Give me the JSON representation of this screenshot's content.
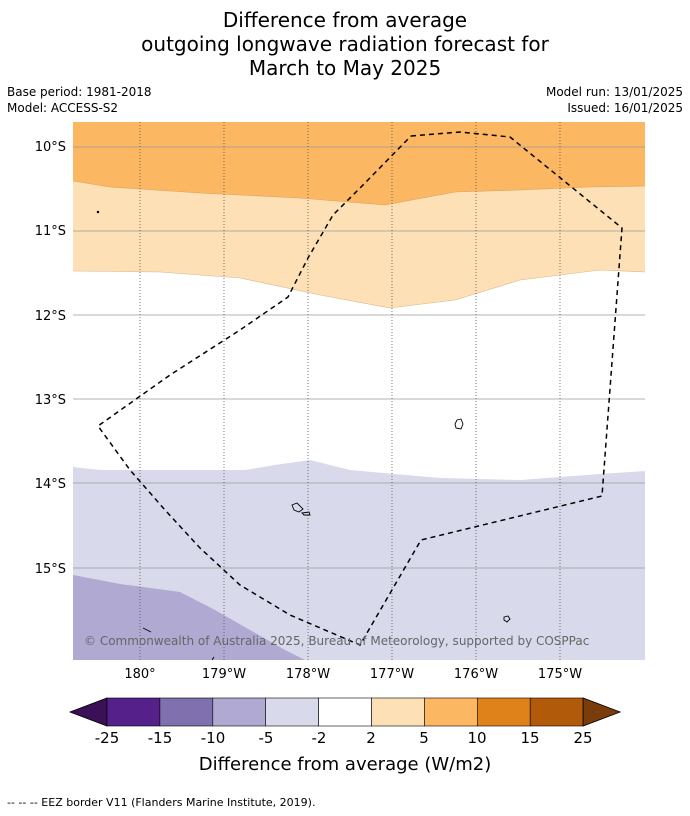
{
  "title": {
    "line1": "Difference from average",
    "line2": "outgoing longwave radiation forecast for",
    "line3": "March to May 2025"
  },
  "meta": {
    "base_period": "Base period: 1981-2018",
    "model": "Model: ACCESS-S2",
    "model_run": "Model run: 13/01/2025",
    "issued": "Issued: 16/01/2025"
  },
  "map": {
    "lat_labels": [
      "10°S",
      "11°S",
      "12°S",
      "13°S",
      "14°S",
      "15°S"
    ],
    "lon_labels": [
      "180°",
      "179°W",
      "178°W",
      "177°W",
      "176°W",
      "175°W"
    ],
    "copyright": "© Commonwealth of Australia 2025, Bureau of Meteorology, supported by COSPPac"
  },
  "colorbar": {
    "ticks": [
      "-25",
      "-15",
      "-10",
      "-5",
      "-2",
      "2",
      "5",
      "10",
      "15",
      "25"
    ],
    "colors": [
      "#3b1056",
      "#56208a",
      "#8070ad",
      "#b0a9d2",
      "#d8d9ea",
      "#ffffff",
      "#fde0b5",
      "#fcb763",
      "#e0821a",
      "#b05a0a",
      "#7a3c0a"
    ],
    "label": "Difference from average (W/m2)"
  },
  "footer": "--  --  -- EEZ border V11 (Flanders Marine Institute, 2019)."
}
